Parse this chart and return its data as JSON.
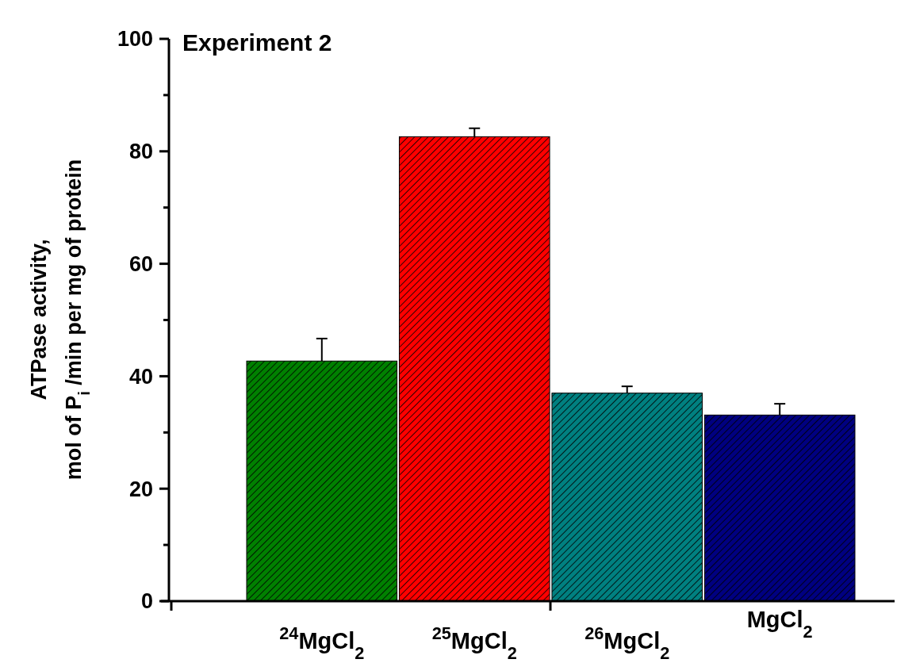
{
  "chart_data": {
    "type": "bar",
    "title": "Experiment 2",
    "ylabel": "ATPase activity,\nmol of P$_{i}$ /min per mg of protein",
    "categories": [
      "$^{24}$MgCl$_{2}$",
      "$^{25}$MgCl$_{2}$",
      "$^{26}$MgCl$_{2}$",
      "MgCl$_{2}$"
    ],
    "values": [
      42.7,
      82.6,
      37.0,
      33.1
    ],
    "colors": [
      "#008000",
      "#ff0000",
      "#008080",
      "#000080"
    ],
    "errors": [
      [
        42.7,
        46.7
      ],
      [
        82.6,
        84.1
      ],
      [
        37.0,
        38.2
      ],
      [
        33.1,
        35.1
      ]
    ],
    "ylim": [
      0,
      100
    ],
    "yticks": [
      0,
      {
        "value": 10,
        "label": null
      },
      20,
      {
        "value": 30,
        "label": null
      },
      40,
      {
        "value": 50,
        "label": null
      },
      60,
      {
        "value": 70,
        "label": null
      },
      80,
      {
        "value": 90,
        "label": null
      },
      100
    ],
    "grid": false
  }
}
